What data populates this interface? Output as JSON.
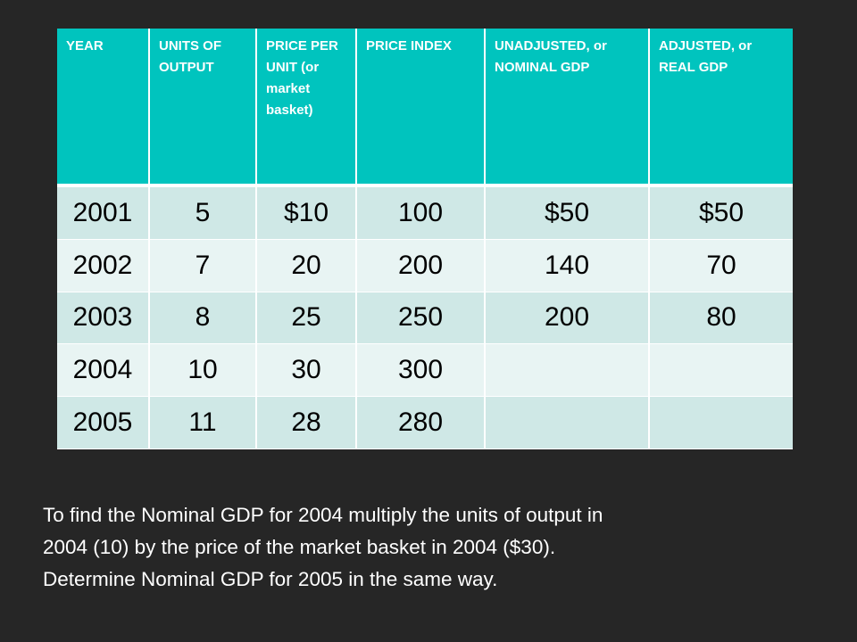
{
  "table": {
    "headers": [
      "YEAR",
      "UNITS OF OUTPUT",
      "PRICE PER UNIT (or market basket)",
      "PRICE INDEX",
      "UNADJUSTED, or NOMINAL GDP",
      "ADJUSTED, or REAL GDP"
    ],
    "rows": [
      [
        "2001",
        "5",
        "$10",
        "100",
        "$50",
        "$50"
      ],
      [
        "2002",
        "7",
        "20",
        "200",
        "140",
        "70"
      ],
      [
        "2003",
        "8",
        "25",
        "250",
        "200",
        "80"
      ],
      [
        "2004",
        "10",
        "30",
        "300",
        "",
        ""
      ],
      [
        "2005",
        "11",
        "28",
        "280",
        "",
        ""
      ]
    ]
  },
  "caption": {
    "line1": "To find the Nominal GDP for 2004 multiply the units of output in",
    "line2": "2004 (10) by the price of the market basket in 2004 ($30).",
    "line3": "Determine Nominal GDP for 2005 in the same way."
  },
  "colors": {
    "background": "#262626",
    "header": "#00c4be",
    "row_odd": "#cfe8e6",
    "row_even": "#e8f4f3"
  }
}
